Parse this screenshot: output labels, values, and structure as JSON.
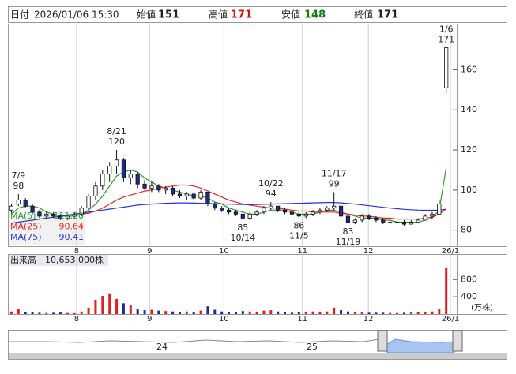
{
  "header": {
    "date_label": "日付",
    "date": "2026/01/06 15:30",
    "open_label": "始値",
    "open": 151,
    "high_label": "高値",
    "high": 171,
    "low_label": "安値",
    "low": 148,
    "close_label": "終値",
    "close": 171
  },
  "chart_data": {
    "type": "candlestick",
    "ylim": [
      72,
      183
    ],
    "yticks": [
      80,
      100,
      120,
      140,
      160
    ],
    "xlim": [
      -0.5,
      63.5
    ],
    "xticks": [
      {
        "value": 9.3,
        "label": "8"
      },
      {
        "value": 19.7,
        "label": "9"
      },
      {
        "value": 30.3,
        "label": "10"
      },
      {
        "value": 41.5,
        "label": "11"
      },
      {
        "value": 50.9,
        "label": "12"
      },
      {
        "value": 62.6,
        "label": "26/1"
      }
    ],
    "up_color": "#ffffff",
    "down_color": "#1a2a8c",
    "grid": true,
    "candles": [
      {
        "o": 90,
        "h": 93,
        "l": 88,
        "c": 92
      },
      {
        "o": 93,
        "h": 98,
        "l": 92,
        "c": 95,
        "date": "7/9",
        "mark": "high"
      },
      {
        "o": 95,
        "h": 96,
        "l": 91,
        "c": 92
      },
      {
        "o": 92,
        "h": 93,
        "l": 88,
        "c": 89
      },
      {
        "o": 89,
        "h": 90,
        "l": 86,
        "c": 87
      },
      {
        "o": 87,
        "h": 89,
        "l": 86,
        "c": 88
      },
      {
        "o": 88,
        "h": 89,
        "l": 86,
        "c": 87
      },
      {
        "o": 87,
        "h": 88,
        "l": 85,
        "c": 86
      },
      {
        "o": 86,
        "h": 88,
        "l": 85,
        "c": 87
      },
      {
        "o": 87,
        "h": 89,
        "l": 86,
        "c": 88
      },
      {
        "o": 88,
        "h": 92,
        "l": 87,
        "c": 91
      },
      {
        "o": 91,
        "h": 98,
        "l": 90,
        "c": 97
      },
      {
        "o": 97,
        "h": 104,
        "l": 95,
        "c": 102
      },
      {
        "o": 102,
        "h": 110,
        "l": 100,
        "c": 108
      },
      {
        "o": 108,
        "h": 114,
        "l": 104,
        "c": 112
      },
      {
        "o": 112,
        "h": 120,
        "l": 108,
        "c": 115,
        "date": "8/21",
        "mark": "high"
      },
      {
        "o": 115,
        "h": 116,
        "l": 104,
        "c": 106
      },
      {
        "o": 106,
        "h": 110,
        "l": 103,
        "c": 108
      },
      {
        "o": 108,
        "h": 109,
        "l": 101,
        "c": 103
      },
      {
        "o": 103,
        "h": 105,
        "l": 100,
        "c": 101
      },
      {
        "o": 101,
        "h": 104,
        "l": 99,
        "c": 102
      },
      {
        "o": 102,
        "h": 103,
        "l": 99,
        "c": 100
      },
      {
        "o": 100,
        "h": 102,
        "l": 98,
        "c": 101
      },
      {
        "o": 101,
        "h": 102,
        "l": 97,
        "c": 98
      },
      {
        "o": 98,
        "h": 100,
        "l": 96,
        "c": 97
      },
      {
        "o": 97,
        "h": 99,
        "l": 95,
        "c": 98
      },
      {
        "o": 98,
        "h": 99,
        "l": 95,
        "c": 96
      },
      {
        "o": 96,
        "h": 100,
        "l": 95,
        "c": 99
      },
      {
        "o": 99,
        "h": 99,
        "l": 92,
        "c": 93
      },
      {
        "o": 93,
        "h": 94,
        "l": 90,
        "c": 91
      },
      {
        "o": 91,
        "h": 92,
        "l": 89,
        "c": 90
      },
      {
        "o": 90,
        "h": 91,
        "l": 88,
        "c": 89
      },
      {
        "o": 89,
        "h": 90,
        "l": 87,
        "c": 88
      },
      {
        "o": 88,
        "h": 89,
        "l": 85,
        "c": 86,
        "date": "10/14",
        "mark": "low"
      },
      {
        "o": 86,
        "h": 89,
        "l": 85,
        "c": 88
      },
      {
        "o": 88,
        "h": 90,
        "l": 87,
        "c": 89
      },
      {
        "o": 89,
        "h": 92,
        "l": 88,
        "c": 91
      },
      {
        "o": 91,
        "h": 94,
        "l": 90,
        "c": 92,
        "date": "10/22",
        "mark": "high"
      },
      {
        "o": 92,
        "h": 92,
        "l": 89,
        "c": 90
      },
      {
        "o": 90,
        "h": 91,
        "l": 88,
        "c": 89
      },
      {
        "o": 89,
        "h": 90,
        "l": 87,
        "c": 88
      },
      {
        "o": 88,
        "h": 89,
        "l": 86,
        "c": 87,
        "date": "11/5",
        "mark": "low"
      },
      {
        "o": 87,
        "h": 89,
        "l": 86,
        "c": 88
      },
      {
        "o": 88,
        "h": 90,
        "l": 87,
        "c": 89
      },
      {
        "o": 89,
        "h": 91,
        "l": 88,
        "c": 90
      },
      {
        "o": 90,
        "h": 92,
        "l": 89,
        "c": 91
      },
      {
        "o": 91,
        "h": 99,
        "l": 90,
        "c": 92,
        "date": "11/17",
        "mark": "high"
      },
      {
        "o": 92,
        "h": 92,
        "l": 86,
        "c": 87
      },
      {
        "o": 87,
        "h": 87,
        "l": 83,
        "c": 84,
        "date": "11/19",
        "mark": "low"
      },
      {
        "o": 84,
        "h": 86,
        "l": 83,
        "c": 85
      },
      {
        "o": 85,
        "h": 88,
        "l": 84,
        "c": 87
      },
      {
        "o": 87,
        "h": 88,
        "l": 85,
        "c": 86
      },
      {
        "o": 86,
        "h": 87,
        "l": 84,
        "c": 85
      },
      {
        "o": 85,
        "h": 86,
        "l": 83,
        "c": 84
      },
      {
        "o": 84,
        "h": 85,
        "l": 83,
        "c": 84
      },
      {
        "o": 84,
        "h": 85,
        "l": 83,
        "c": 84
      },
      {
        "o": 84,
        "h": 85,
        "l": 82,
        "c": 83
      },
      {
        "o": 83,
        "h": 85,
        "l": 83,
        "c": 84
      },
      {
        "o": 84,
        "h": 86,
        "l": 84,
        "c": 85
      },
      {
        "o": 85,
        "h": 88,
        "l": 85,
        "c": 87
      },
      {
        "o": 87,
        "h": 89,
        "l": 86,
        "c": 88
      },
      {
        "o": 88,
        "h": 95,
        "l": 88,
        "c": 93
      },
      {
        "o": 151,
        "h": 171,
        "l": 148,
        "c": 171,
        "date": "1/6",
        "mark": "high"
      }
    ],
    "series": [
      {
        "name": "MA(5)",
        "color": "#2e9a2e",
        "legend_value_label": "111.20",
        "values": [
          88,
          91,
          92,
          92,
          91,
          89,
          88,
          87,
          87,
          87,
          88,
          90,
          93,
          97,
          102,
          107,
          109,
          110,
          109,
          106,
          104,
          102,
          101,
          100,
          99,
          98,
          97,
          97,
          96,
          94,
          93,
          91,
          90,
          89,
          88,
          88,
          89,
          90,
          90,
          90,
          89,
          88,
          88,
          88,
          89,
          90,
          90,
          89,
          88,
          87,
          86,
          86,
          86,
          85,
          85,
          84,
          84,
          84,
          84,
          85,
          86,
          90,
          111.2
        ]
      },
      {
        "name": "MA(25)",
        "color": "#e8242a",
        "legend_value_label": "90.64",
        "values": [
          null,
          null,
          null,
          null,
          null,
          null,
          null,
          null,
          null,
          null,
          88,
          88.5,
          89.5,
          91,
          93,
          95,
          96.5,
          97.5,
          98.5,
          99.5,
          100,
          101,
          101.5,
          102,
          102.5,
          102.5,
          102,
          101,
          99.5,
          98,
          96.5,
          95,
          94,
          93,
          92.5,
          92,
          91.5,
          91,
          91,
          90.5,
          90,
          89.5,
          89.5,
          89,
          89,
          89,
          89,
          88.5,
          88,
          87.5,
          87,
          87,
          86.5,
          86,
          86,
          85.5,
          85.5,
          85.5,
          85.5,
          86,
          86.5,
          88,
          90.64
        ]
      },
      {
        "name": "MA(75)",
        "color": "#2233dd",
        "legend_value_label": "90.41",
        "values": [
          83.5,
          84,
          84.5,
          85,
          85.5,
          86,
          86.5,
          87,
          87.5,
          88,
          88.5,
          89,
          89.5,
          90,
          90.5,
          91,
          91.5,
          92,
          92.5,
          92.8,
          93,
          93.2,
          93.4,
          93.5,
          93.6,
          93.6,
          93.5,
          93.4,
          93.3,
          93.2,
          93.1,
          93,
          92.9,
          92.8,
          92.8,
          92.8,
          92.9,
          93,
          93.1,
          93.2,
          93.3,
          93.4,
          93.5,
          93.6,
          93.7,
          93.8,
          93.8,
          93.6,
          93.3,
          93,
          92.6,
          92.2,
          91.8,
          91.4,
          91,
          90.7,
          90.4,
          90.2,
          90,
          89.9,
          89.9,
          90,
          90.41
        ]
      }
    ],
    "volume": {
      "label": "出来高",
      "latest_label": "10,653,000株",
      "unit": "(万株)",
      "ylim": [
        0,
        1390
      ],
      "yticks": [
        400,
        800
      ],
      "up_color": "#e02020",
      "down_color": "#1a2a9c",
      "values": [
        60,
        120,
        50,
        40,
        30,
        25,
        30,
        35,
        25,
        20,
        60,
        150,
        330,
        420,
        480,
        350,
        250,
        200,
        120,
        90,
        100,
        80,
        70,
        60,
        50,
        60,
        40,
        80,
        180,
        100,
        60,
        50,
        40,
        70,
        60,
        50,
        80,
        90,
        60,
        40,
        30,
        50,
        40,
        60,
        50,
        60,
        150,
        90,
        60,
        50,
        40,
        30,
        30,
        30,
        25,
        25,
        30,
        35,
        40,
        50,
        60,
        120,
        1065.3
      ]
    },
    "navigator": {
      "labels": [
        "24",
        "25"
      ]
    }
  }
}
